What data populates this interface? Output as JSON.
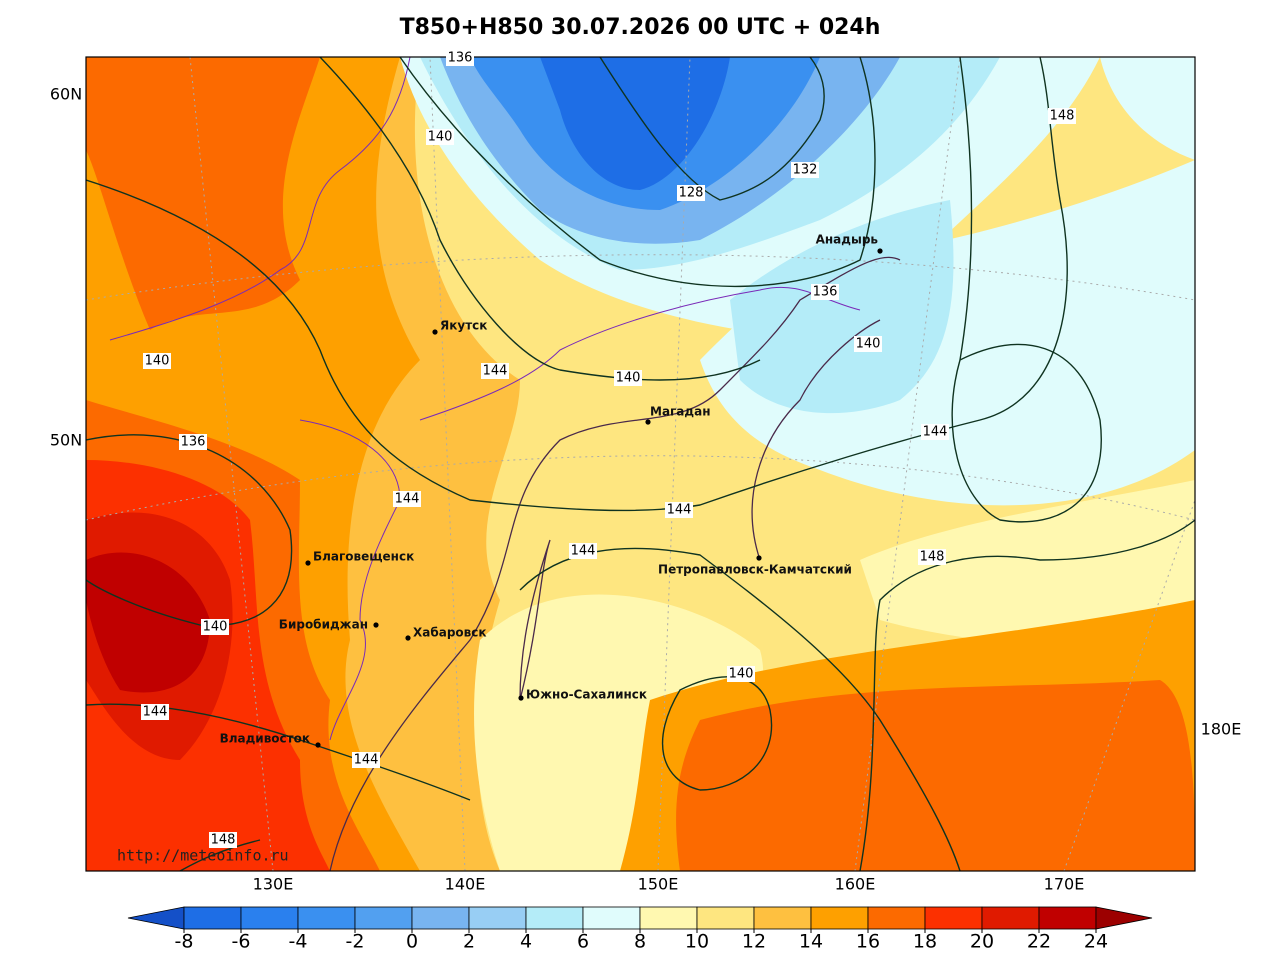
{
  "title": "T850+H850 30.07.2026 00 UTC + 024h",
  "map": {
    "lat_labels": [
      "60N",
      "50N"
    ],
    "lon_labels": [
      "130E",
      "140E",
      "150E",
      "160E",
      "170E",
      "180E"
    ],
    "cities": [
      "Якутск",
      "Магадан",
      "Анадырь",
      "Благовещенск",
      "Биробиджан",
      "Хабаровск",
      "Петропавловск-Камчатский",
      "Южно-Сахалинск",
      "Владивосток"
    ],
    "contour_labels": [
      "136",
      "140",
      "128",
      "132",
      "148",
      "136",
      "140",
      "140",
      "144",
      "140",
      "144",
      "136",
      "144",
      "144",
      "144",
      "148",
      "140",
      "140",
      "144",
      "144",
      "148"
    ],
    "watermark": "http://meteoinfo.ru"
  },
  "colorbar": {
    "ticks": [
      -8,
      -6,
      -4,
      -2,
      0,
      2,
      4,
      6,
      8,
      10,
      12,
      14,
      16,
      18,
      20,
      22,
      24
    ],
    "colors": [
      "#1450c8",
      "#1e6ee6",
      "#2a80ee",
      "#3a90f0",
      "#52a0f0",
      "#78b4f0",
      "#98cef4",
      "#b4ecf8",
      "#e0fcfc",
      "#fff8b0",
      "#fee680",
      "#fec040",
      "#fea000",
      "#fc6a00",
      "#fc3000",
      "#e01a00",
      "#c00000",
      "#9c0000"
    ]
  }
}
